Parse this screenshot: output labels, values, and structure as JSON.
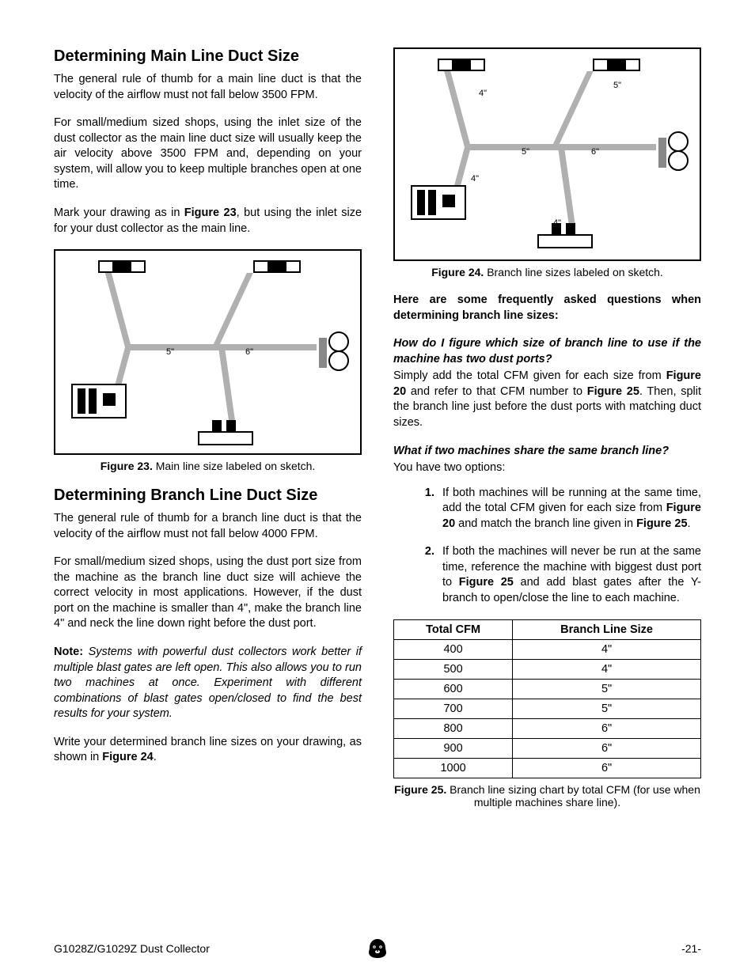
{
  "left": {
    "heading1": "Determining Main Line Duct Size",
    "p1": "The general rule of thumb for a main line duct is that the velocity of the airflow must not fall below 3500 FPM.",
    "p2": "For small/medium sized shops, using the inlet size of the dust collector as the main line duct size will usually keep the air velocity above 3500 FPM and, depending on your system, will allow you to keep multiple branches open at one time.",
    "p3a": "Mark your drawing as in ",
    "p3b": "Figure 23",
    "p3c": ", but using the inlet size for your dust collector as the main line.",
    "fig23_label_5": "5\"",
    "fig23_label_6": "6\"",
    "caption23a": "Figure 23.",
    "caption23b": " Main line size labeled on sketch.",
    "heading2": "Determining Branch Line Duct Size",
    "p4": "The general rule of thumb for a branch line duct is that the velocity of the airflow must not fall below 4000 FPM.",
    "p5": "For small/medium sized shops, using the dust port size from the machine as the branch line duct size will achieve the correct velocity in most applications. However, if the dust port on the machine is smaller than 4\", make the branch line 4\" and neck the line down right before the dust port.",
    "note_label": "Note:",
    "note_body": " Systems with powerful dust collectors work better if multiple blast gates are left open. This also allows you to run two machines at once. Experiment with different combinations of blast gates open/closed to find the best results for your system.",
    "p6a": "Write your determined branch line sizes on your drawing, as shown in ",
    "p6b": "Figure 24",
    "p6c": "."
  },
  "right": {
    "fig24_l1": "4\"",
    "fig24_l2": "5\"",
    "fig24_l3": "5\"",
    "fig24_l4": "6\"",
    "fig24_l5": "4\"",
    "fig24_l6": "4\"",
    "caption24a": "Figure 24.",
    "caption24b": " Branch line sizes labeled on sketch.",
    "faq_intro": "Here are some frequently asked questions when determining branch line sizes:",
    "q1": "How do I figure which size of branch line to use if the machine has two dust ports?",
    "a1a": "Simply add the total CFM given for each size from ",
    "a1b": "Figure 20",
    "a1c": " and refer to that CFM number to ",
    "a1d": "Figure 25",
    "a1e": ". Then, split the branch line just before the dust ports with matching duct sizes.",
    "q2": "What if two machines share the same branch line?",
    "a2_intro": "You have two options:",
    "li1a": "If both machines will be running at the same time, add the total CFM given for each size from ",
    "li1b": "Figure 20",
    "li1c": " and match the branch line given in ",
    "li1d": "Figure 25",
    "li1e": ".",
    "li2a": "If both the machines will never be run at the same time, reference the machine with biggest dust port to ",
    "li2b": "Figure 25",
    "li2c": " and add blast gates after the Y-branch to open/close the line to each machine.",
    "table": {
      "col1": "Total CFM",
      "col2": "Branch Line Size",
      "rows": [
        [
          "400",
          "4\""
        ],
        [
          "500",
          "4\""
        ],
        [
          "600",
          "5\""
        ],
        [
          "700",
          "5\""
        ],
        [
          "800",
          "6\""
        ],
        [
          "900",
          "6\""
        ],
        [
          "1000",
          "6\""
        ]
      ]
    },
    "caption25a": "Figure 25.",
    "caption25b": " Branch line sizing chart by total CFM (for use when multiple machines share line)."
  },
  "footer": {
    "left": "G1028Z/G1029Z Dust Collector",
    "right": "-21-"
  }
}
